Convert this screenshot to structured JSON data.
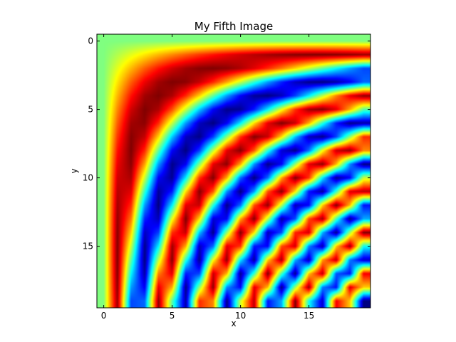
{
  "chart_data": {
    "type": "heatmap",
    "title": "My Fifth Image",
    "xlabel": "x",
    "ylabel": "y",
    "colormap": "jet",
    "interpolation": "smooth",
    "function": "sin(x*y/10)",
    "x": [
      0,
      1,
      2,
      3,
      4,
      5,
      6,
      7,
      8,
      9,
      10,
      11,
      12,
      13,
      14,
      15,
      16,
      17,
      18,
      19
    ],
    "y": [
      0,
      1,
      2,
      3,
      4,
      5,
      6,
      7,
      8,
      9,
      10,
      11,
      12,
      13,
      14,
      15,
      16,
      17,
      18,
      19
    ],
    "xlim": [
      -0.5,
      19.5
    ],
    "ylim": [
      19.5,
      -0.5
    ],
    "y_axis_inverted": true,
    "color_range": [
      -1,
      1
    ],
    "xticks": [
      0,
      5,
      10,
      15
    ],
    "yticks": [
      0,
      5,
      10,
      15
    ],
    "xtick_labels": [
      "0",
      "5",
      "10",
      "15"
    ],
    "ytick_labels": [
      "0",
      "5",
      "10",
      "15"
    ],
    "grid": false,
    "legend": "none"
  }
}
